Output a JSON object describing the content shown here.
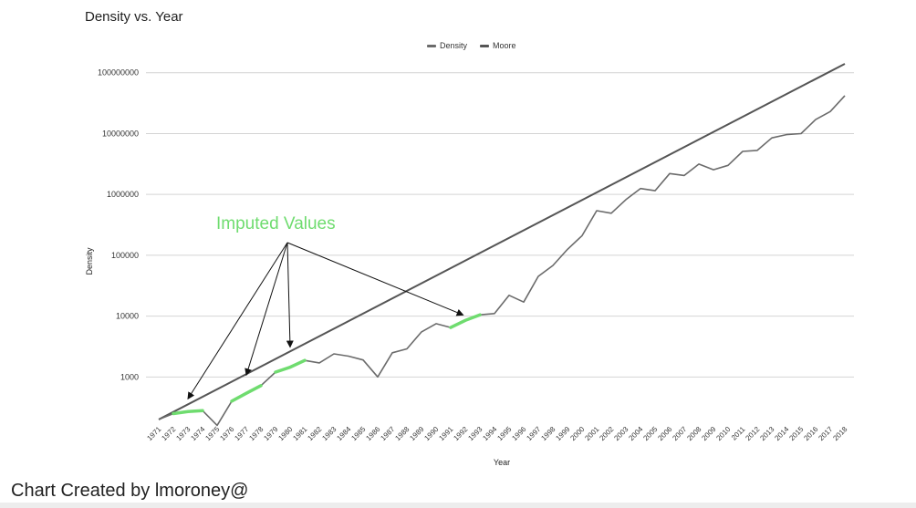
{
  "chart_data": {
    "type": "line",
    "title": "Density vs. Year",
    "xlabel": "Year",
    "ylabel": "Density",
    "y_scale": "log",
    "ylim": [
      180,
      140000000
    ],
    "y_ticks": [
      "1000",
      "10000",
      "100000",
      "1000000",
      "10000000",
      "100000000"
    ],
    "x": [
      "1971",
      "1972",
      "1973",
      "1974",
      "1975",
      "1976",
      "1977",
      "1978",
      "1979",
      "1980",
      "1981",
      "1982",
      "1983",
      "1984",
      "1985",
      "1986",
      "1987",
      "1988",
      "1989",
      "1990",
      "1991",
      "1992",
      "1993",
      "1994",
      "1995",
      "1996",
      "1997",
      "1998",
      "1999",
      "2000",
      "2001",
      "2002",
      "2003",
      "2004",
      "2005",
      "2006",
      "2007",
      "2008",
      "2009",
      "2010",
      "2011",
      "2012",
      "2013",
      "2014",
      "2015",
      "2016",
      "2017",
      "2018"
    ],
    "grid": true,
    "legend_position": "top",
    "series": [
      {
        "name": "Density",
        "color": "#6b6b6b",
        "values": [
          200,
          250,
          270,
          280,
          160,
          400,
          540,
          720,
          1200,
          1450,
          1870,
          1700,
          2400,
          2200,
          1900,
          1000,
          2500,
          2900,
          5500,
          7500,
          6500,
          8500,
          10500,
          11000,
          22000,
          17000,
          45000,
          68000,
          125000,
          210000,
          540000,
          490000,
          820000,
          1250000,
          1150000,
          2200000,
          2050000,
          3150000,
          2550000,
          3000000,
          5100000,
          5300000,
          8500000,
          9600000,
          10000000,
          17000000,
          23000000,
          42000000
        ]
      },
      {
        "name": "Moore",
        "color": "#555555",
        "start_value": 200,
        "end_value": 140000000
      }
    ],
    "imputed_segments": [
      {
        "from": "1972",
        "to": "1974"
      },
      {
        "from": "1976",
        "to": "1978"
      },
      {
        "from": "1979",
        "to": "1981"
      },
      {
        "from": "1991",
        "to": "1993"
      }
    ],
    "imputed_color": "#6fdc6f",
    "annotation": {
      "text": "Imputed Values",
      "color": "#6fdc6f",
      "arrow_targets": [
        "1973",
        "1977",
        "1980",
        "1992"
      ]
    }
  },
  "credit": "Chart Created by lmoroney@"
}
